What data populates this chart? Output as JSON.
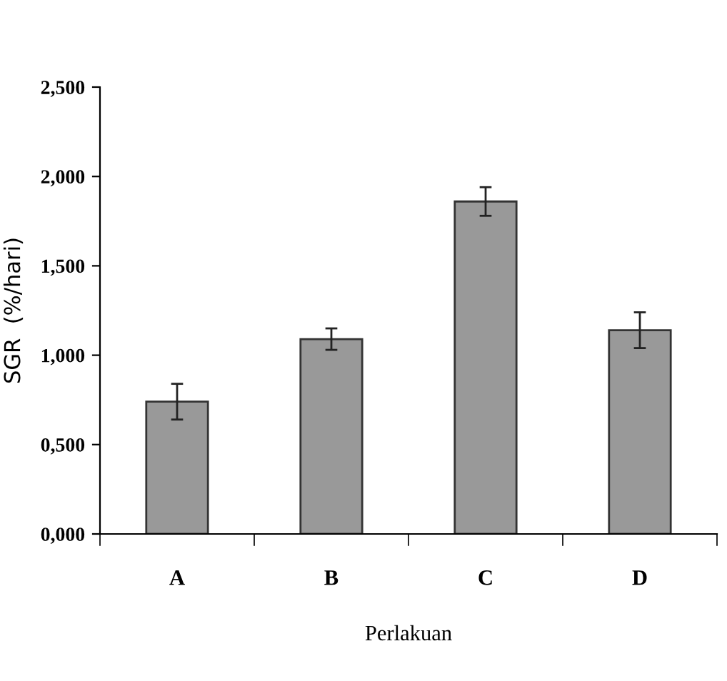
{
  "chart_data": {
    "type": "bar",
    "xlabel": "Perlakuan",
    "ylabel": "SGR  (%/hari)",
    "categories": [
      "A",
      "B",
      "C",
      "D"
    ],
    "values": [
      0.74,
      1.09,
      1.86,
      1.14
    ],
    "errors": [
      0.1,
      0.06,
      0.08,
      0.1
    ],
    "color": "#999999",
    "ylim": [
      0,
      2.5
    ],
    "yticks": [
      {
        "value": 0,
        "label": "0,000"
      },
      {
        "value": 0.5,
        "label": "0,500"
      },
      {
        "value": 1.0,
        "label": "1,000"
      },
      {
        "value": 1.5,
        "label": "1,500"
      },
      {
        "value": 2.0,
        "label": "2,000"
      },
      {
        "value": 2.5,
        "label": "2,500"
      }
    ],
    "grid": false,
    "legend": false
  }
}
